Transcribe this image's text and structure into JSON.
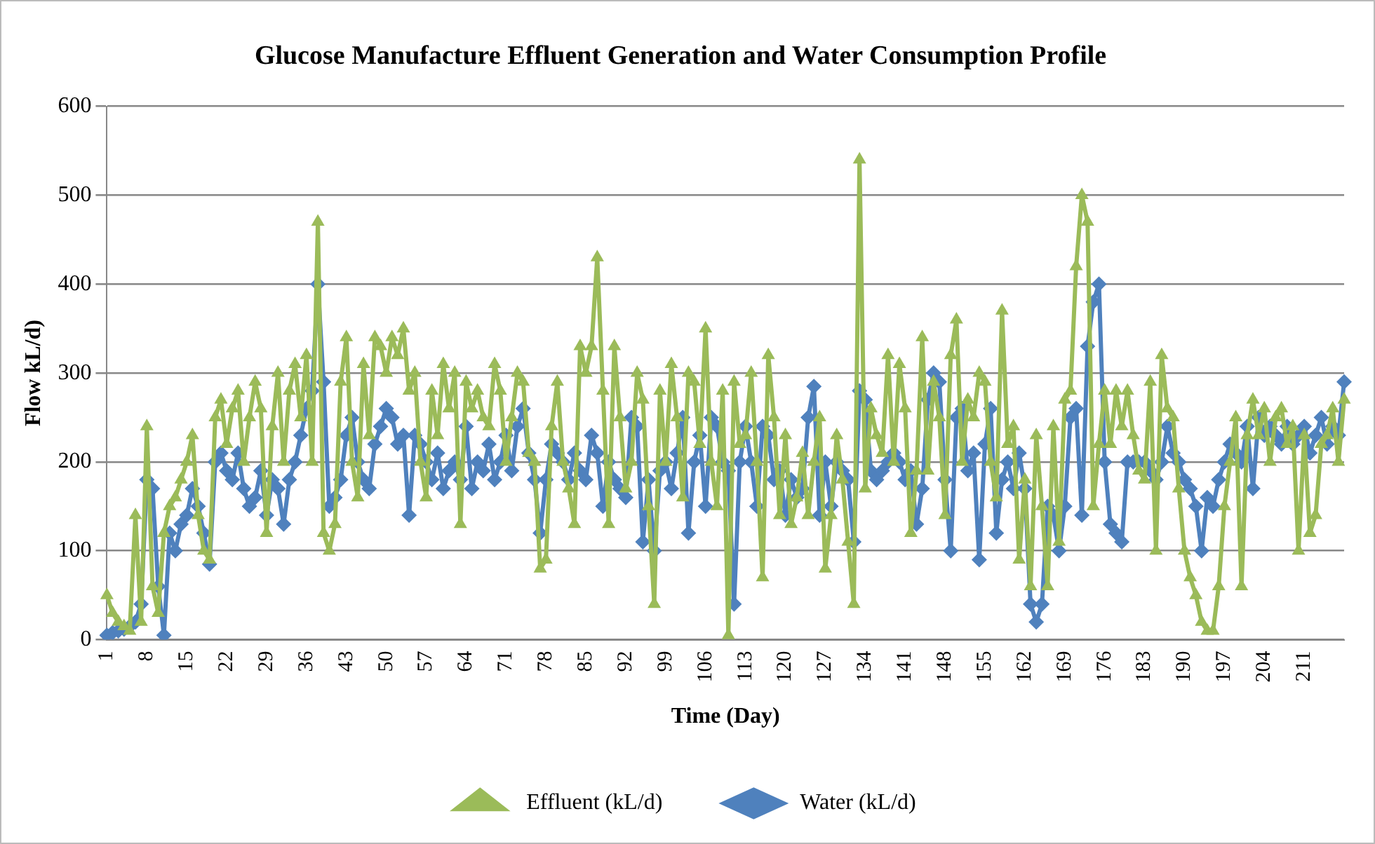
{
  "chart_data": {
    "type": "line",
    "title": "Glucose Manufacture Effluent Generation and Water Consumption Profile",
    "xlabel": "Time (Day)",
    "ylabel": "Flow kL/d)",
    "categories": [
      "1",
      null,
      null,
      null,
      null,
      null,
      null,
      "8",
      null,
      null,
      null,
      null,
      null,
      null,
      "15",
      null,
      null,
      null,
      null,
      null,
      null,
      "22",
      null,
      null,
      null,
      null,
      null,
      null,
      "29",
      null,
      null,
      null,
      null,
      null,
      null,
      "36",
      null,
      null,
      null,
      null,
      null,
      null,
      "43",
      null,
      null,
      null,
      null,
      null,
      null,
      "50",
      null,
      null,
      null,
      null,
      null,
      null,
      "57",
      null,
      null,
      null,
      null,
      null,
      null,
      "64",
      null,
      null,
      null,
      null,
      null,
      null,
      "71",
      null,
      null,
      null,
      null,
      null,
      null,
      "78",
      null,
      null,
      null,
      null,
      null,
      null,
      "85",
      null,
      null,
      null,
      null,
      null,
      null,
      "92",
      null,
      null,
      null,
      null,
      null,
      null,
      "99",
      null,
      null,
      null,
      null,
      null,
      null,
      "106",
      null,
      null,
      null,
      null,
      null,
      null,
      "113",
      null,
      null,
      null,
      null,
      null,
      null,
      "120",
      null,
      null,
      null,
      null,
      null,
      null,
      "127",
      null,
      null,
      null,
      null,
      null,
      null,
      "134",
      null,
      null,
      null,
      null,
      null,
      null,
      "141",
      null,
      null,
      null,
      null,
      null,
      null,
      "148",
      null,
      null,
      null,
      null,
      null,
      null,
      "155",
      null,
      null,
      null,
      null,
      null,
      null,
      "162",
      null,
      null,
      null,
      null,
      null,
      null,
      "169",
      null,
      null,
      null,
      null,
      null,
      null,
      "176",
      null,
      null,
      null,
      null,
      null,
      null,
      "183",
      null,
      null,
      null,
      null,
      null,
      null,
      "190",
      null,
      null,
      null,
      null,
      null,
      null,
      "197",
      null,
      null,
      null,
      null,
      null,
      null,
      "204",
      null,
      null,
      null,
      null,
      null,
      null,
      "211",
      null,
      null,
      null,
      null,
      null,
      null,
      null
    ],
    "series": [
      {
        "name": "Effluent (kL/d)",
        "color": "#9bbb59",
        "marker": "triangle",
        "values": [
          50,
          30,
          20,
          15,
          10,
          140,
          20,
          240,
          60,
          30,
          120,
          150,
          160,
          180,
          200,
          230,
          140,
          100,
          90,
          250,
          270,
          220,
          260,
          280,
          200,
          250,
          290,
          260,
          120,
          240,
          300,
          200,
          280,
          310,
          250,
          320,
          200,
          470,
          120,
          100,
          130,
          290,
          340,
          200,
          160,
          310,
          230,
          340,
          330,
          300,
          340,
          320,
          350,
          280,
          300,
          200,
          160,
          280,
          230,
          310,
          260,
          300,
          130,
          290,
          260,
          280,
          250,
          240,
          310,
          280,
          200,
          250,
          300,
          290,
          210,
          200,
          80,
          90,
          240,
          290,
          200,
          170,
          130,
          330,
          300,
          330,
          430,
          280,
          130,
          330,
          250,
          170,
          200,
          300,
          270,
          150,
          40,
          280,
          200,
          310,
          250,
          160,
          300,
          290,
          220,
          350,
          200,
          150,
          280,
          5,
          290,
          220,
          230,
          300,
          200,
          70,
          320,
          250,
          140,
          230,
          130,
          160,
          210,
          140,
          200,
          250,
          80,
          140,
          230,
          180,
          110,
          40,
          540,
          170,
          260,
          230,
          210,
          320,
          200,
          310,
          260,
          120,
          190,
          340,
          190,
          290,
          250,
          140,
          320,
          360,
          200,
          270,
          250,
          300,
          290,
          200,
          160,
          370,
          220,
          240,
          90,
          180,
          60,
          230,
          150,
          60,
          240,
          110,
          270,
          280,
          420,
          500,
          470,
          150,
          220,
          280,
          220,
          280,
          240,
          280,
          230,
          190,
          180,
          290,
          100,
          320,
          260,
          250,
          170,
          100,
          70,
          50,
          20,
          10,
          10,
          60,
          150,
          200,
          250,
          60,
          230,
          270,
          230,
          260,
          200,
          250,
          260,
          220,
          240,
          100,
          230,
          120,
          140,
          220,
          230,
          260,
          200,
          270
        ]
      },
      {
        "name": "Water (kL/d)",
        "color": "#4f81bd",
        "marker": "diamond",
        "values": [
          5,
          8,
          10,
          12,
          15,
          20,
          40,
          180,
          170,
          60,
          5,
          120,
          100,
          130,
          140,
          170,
          150,
          120,
          85,
          200,
          210,
          190,
          180,
          210,
          170,
          150,
          160,
          190,
          140,
          180,
          170,
          130,
          180,
          200,
          230,
          260,
          280,
          400,
          290,
          150,
          160,
          180,
          230,
          250,
          200,
          180,
          170,
          220,
          240,
          260,
          250,
          220,
          230,
          140,
          230,
          220,
          200,
          180,
          210,
          170,
          190,
          200,
          180,
          240,
          170,
          200,
          190,
          220,
          180,
          200,
          230,
          190,
          240,
          260,
          210,
          180,
          120,
          180,
          220,
          210,
          200,
          180,
          210,
          190,
          180,
          230,
          210,
          150,
          200,
          180,
          170,
          160,
          250,
          240,
          110,
          180,
          100,
          190,
          200,
          170,
          210,
          250,
          120,
          200,
          230,
          150,
          250,
          240,
          200,
          190,
          40,
          200,
          240,
          200,
          150,
          240,
          230,
          180,
          190,
          140,
          180,
          160,
          170,
          250,
          285,
          140,
          200,
          150,
          200,
          190,
          180,
          110,
          280,
          270,
          190,
          180,
          190,
          200,
          210,
          200,
          180,
          190,
          130,
          170,
          270,
          300,
          290,
          180,
          100,
          250,
          260,
          190,
          210,
          90,
          220,
          260,
          120,
          180,
          200,
          170,
          210,
          170,
          40,
          20,
          40,
          150,
          140,
          100,
          150,
          250,
          260,
          140,
          330,
          380,
          400,
          200,
          130,
          120,
          110,
          200,
          200,
          200,
          200,
          190,
          180,
          200,
          240,
          210,
          200,
          180,
          170,
          150,
          100,
          160,
          150,
          180,
          200,
          220,
          210,
          200,
          240,
          170,
          250,
          230,
          240,
          230,
          220,
          240,
          220,
          230,
          240,
          210,
          230,
          250,
          220,
          240,
          230,
          290
        ]
      }
    ],
    "ylim": [
      0,
      600
    ],
    "yticks": [
      0,
      100,
      200,
      300,
      400,
      500,
      600
    ],
    "grid": "y",
    "legend": "bottom",
    "line_style": "solid"
  }
}
